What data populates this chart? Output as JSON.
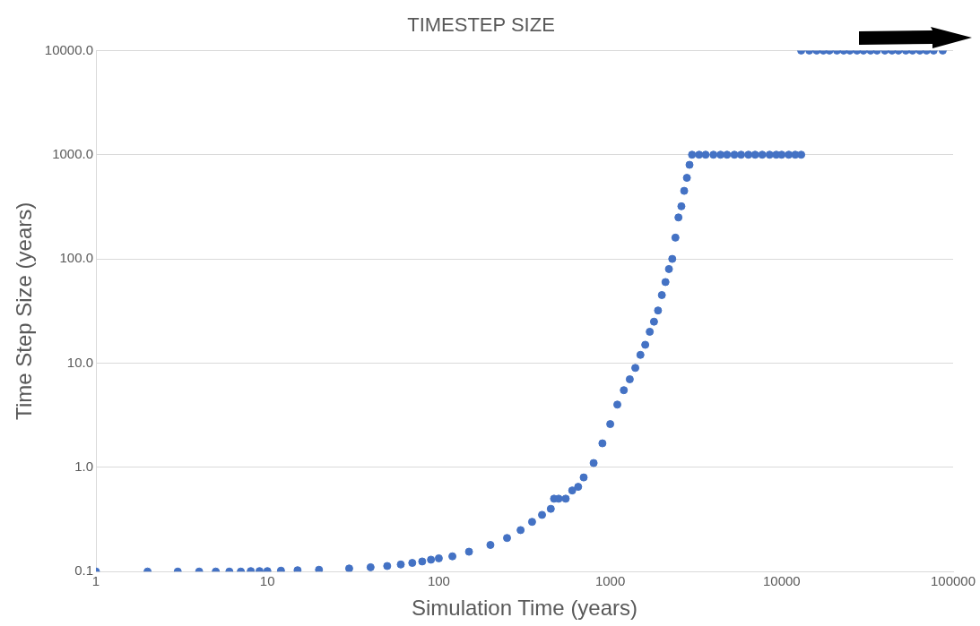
{
  "chart_data": {
    "type": "scatter",
    "title": "TIMESTEP SIZE",
    "xlabel": "Simulation Time (years)",
    "ylabel": "Time Step Size (years)",
    "log": "xy",
    "grid": "y",
    "marker": "circle",
    "legend": false,
    "xlim": [
      1,
      100000
    ],
    "xticks": [
      1,
      10,
      100,
      1000,
      10000,
      100000
    ],
    "ylim": [
      0.1,
      10000
    ],
    "yticks": [
      {
        "value": 0.1,
        "label": "0.1"
      },
      {
        "value": 1,
        "label": "1.0"
      },
      {
        "value": 10,
        "label": "10.0"
      },
      {
        "value": 100,
        "label": "100.0"
      },
      {
        "value": 1000,
        "label": "1000.0"
      },
      {
        "value": 10000,
        "label": "10000.0"
      }
    ],
    "series": [
      {
        "color": "#4472c4",
        "x": [
          1,
          2,
          3,
          4,
          5,
          6,
          7,
          8,
          9,
          10,
          12,
          15,
          20,
          30,
          40,
          50,
          60,
          70,
          80,
          90,
          100,
          120,
          150,
          200,
          250,
          300,
          350,
          400,
          450,
          470,
          500,
          550,
          600,
          650,
          700,
          800,
          900,
          1000,
          1100,
          1200,
          1300,
          1400,
          1500,
          1600,
          1700,
          1800,
          1900,
          2000,
          2100,
          2200,
          2300,
          2400,
          2500,
          2600,
          2700,
          2800,
          2900,
          3000,
          3300,
          3600,
          4000,
          4400,
          4800,
          5300,
          5800,
          6400,
          7000,
          7700,
          8500,
          9300,
          10000,
          11000,
          12000,
          13000,
          13000,
          14500,
          16000,
          17500,
          19000,
          21000,
          23000,
          25000,
          27500,
          30000,
          33000,
          36000,
          40000,
          44000,
          48000,
          53000,
          58000,
          64000,
          70000,
          77000,
          87000
        ],
        "values": [
          0.1,
          0.1,
          0.1,
          0.1,
          0.1,
          0.1,
          0.1,
          0.101,
          0.101,
          0.101,
          0.102,
          0.103,
          0.104,
          0.107,
          0.11,
          0.113,
          0.117,
          0.121,
          0.125,
          0.13,
          0.134,
          0.14,
          0.155,
          0.18,
          0.21,
          0.25,
          0.3,
          0.35,
          0.4,
          0.5,
          0.5,
          0.5,
          0.6,
          0.65,
          0.8,
          1.1,
          1.7,
          2.6,
          4,
          5.5,
          7,
          9,
          12,
          15,
          20,
          25,
          32,
          45,
          60,
          80,
          100,
          160,
          250,
          320,
          450,
          600,
          800,
          1000,
          1000,
          1000,
          1000,
          1000,
          1000,
          1000,
          1000,
          1000,
          1000,
          1000,
          1000,
          1000,
          1000,
          1000,
          1000,
          1000,
          10000,
          10000,
          10000,
          10000,
          10000,
          10000,
          10000,
          10000,
          10000,
          10000,
          10000,
          10000,
          10000,
          10000,
          10000,
          10000,
          10000,
          10000,
          10000,
          10000,
          10000
        ]
      }
    ]
  }
}
